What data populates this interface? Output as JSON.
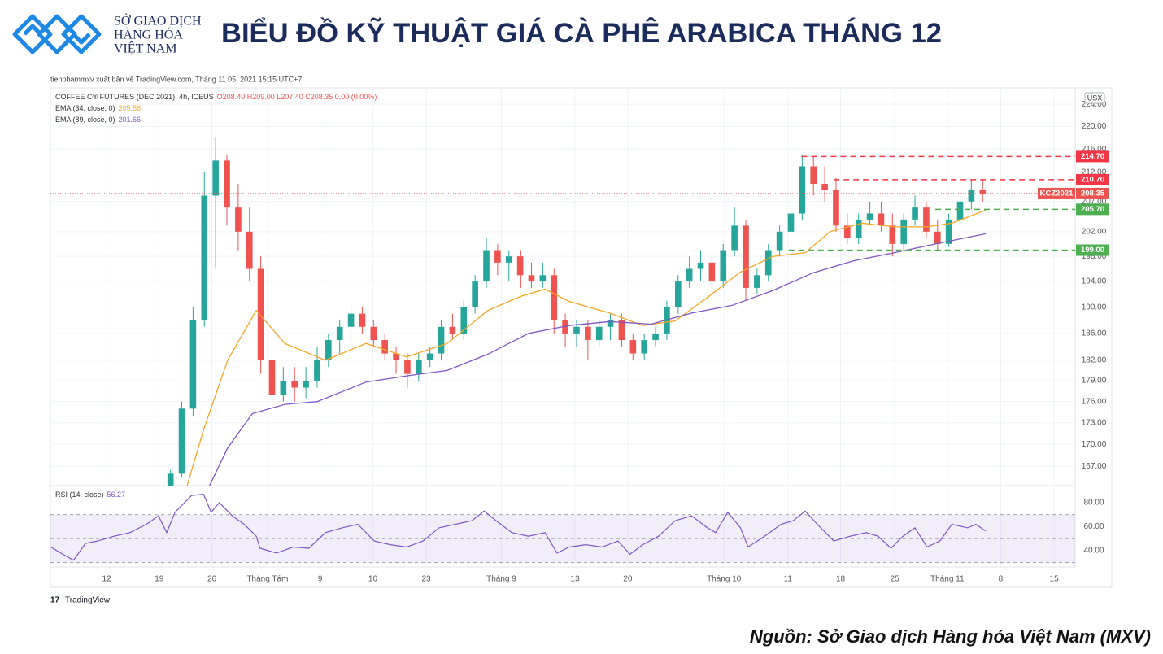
{
  "header": {
    "logo_lines": [
      "SỞ GIAO DỊCH",
      "HÀNG HÓA",
      "VIỆT NAM"
    ],
    "title": "BIỂU ĐỒ KỸ THUẬT GIÁ CÀ PHÊ ARABICA THÁNG 12"
  },
  "publisher": "tienphammxv xuất bản về TradingView.com, Tháng 11 05, 2021 15:15 UTC+7",
  "brand": "TradingView",
  "source": "Nguồn: Sở Giao dịch Hàng hóa Việt Nam (MXV)",
  "chart_data": {
    "type": "candlestick",
    "title": "COFFEE C® FUTURES (DEC 2021), 4h, ICEUS",
    "ohlc_text": "O208.40 H209.00 L207.40 C208.35 0.00 (0.00%)",
    "currency": "USX",
    "symbol": "KCZ2021",
    "log_y": true,
    "grid": true,
    "up_color": "#26a69a",
    "down_color": "#ef5350",
    "x": [
      15.5,
      17,
      18.5,
      20,
      21.5,
      23,
      24.5,
      26,
      27.5,
      29,
      30.5,
      32,
      33.5,
      35,
      36.5,
      38,
      39.5,
      41,
      42.5,
      44,
      45.5,
      47,
      48.5,
      50,
      51.5,
      53,
      54.5,
      56,
      57.5,
      59,
      60.5,
      62,
      63.5,
      65,
      66.5,
      68,
      69.5,
      71,
      72.5,
      74,
      75.5,
      77,
      78.5,
      80,
      81.5,
      83,
      84.5,
      86,
      87.5,
      89,
      90.5,
      92,
      93.5,
      95,
      96.5,
      98,
      99.5,
      101,
      102.5,
      104,
      105.5,
      107,
      108.5,
      110,
      111.5,
      113,
      114.5,
      116,
      117.5,
      119,
      120.5,
      122,
      123.5
    ],
    "open": [
      163.5,
      166,
      175,
      188,
      208,
      214,
      206,
      202,
      196,
      182,
      177,
      179,
      178,
      179,
      182,
      185,
      187,
      189,
      187,
      185,
      183,
      182,
      180,
      182,
      183,
      187,
      186,
      190,
      194,
      199,
      197,
      198,
      195,
      194,
      195,
      188,
      186,
      187,
      185,
      187,
      188,
      185,
      183,
      185,
      186,
      190,
      194,
      196,
      197,
      194,
      199,
      203,
      193,
      195,
      199,
      202,
      205,
      213,
      210,
      209,
      203,
      201,
      204,
      205,
      203,
      200,
      204,
      206,
      202,
      200,
      204,
      207,
      209
    ],
    "high": [
      166.5,
      176,
      190,
      212,
      218,
      215,
      210,
      206,
      198,
      183,
      181,
      181,
      181,
      184,
      186,
      188,
      190,
      190,
      188,
      186,
      184,
      183,
      183,
      184,
      188,
      189,
      191,
      195,
      201,
      200,
      199,
      199,
      197,
      197,
      196,
      189,
      188,
      188,
      188,
      189,
      189,
      186,
      186,
      187,
      191,
      195,
      198,
      199,
      198,
      200,
      206,
      204,
      196,
      200,
      203,
      206,
      215,
      214.7,
      213,
      211,
      205,
      205,
      207,
      207,
      205,
      205,
      208,
      207,
      204,
      205,
      208,
      210.7,
      210.7
    ],
    "low": [
      163,
      165.5,
      174,
      187,
      196,
      203,
      199,
      194,
      180,
      175,
      176,
      176,
      176.5,
      178,
      181,
      183,
      185,
      186,
      184,
      182,
      180,
      178,
      179,
      181,
      182,
      185,
      185,
      189,
      193,
      195,
      194,
      193,
      193,
      193,
      186,
      184,
      184,
      182,
      184,
      185,
      184,
      182,
      182,
      184,
      185,
      189,
      193,
      194,
      193,
      193,
      198,
      191,
      192,
      194,
      198,
      201,
      204,
      208,
      207,
      202,
      200,
      200,
      203,
      202,
      198,
      199,
      203,
      201,
      199,
      199.5,
      203,
      205.7,
      207
    ],
    "close": [
      166,
      175,
      188,
      208,
      214,
      206,
      202,
      196,
      182,
      177,
      179,
      178,
      179,
      182,
      185,
      187,
      189,
      187,
      185,
      183,
      182,
      180,
      182,
      183,
      187,
      186,
      190,
      194,
      199,
      197,
      198,
      195,
      194,
      195,
      188,
      186,
      187,
      185,
      187,
      188,
      185,
      183,
      185,
      186,
      190,
      194,
      196,
      197,
      194,
      199,
      203,
      193,
      195,
      199,
      202,
      205,
      213,
      210,
      209,
      203,
      201,
      204,
      205,
      203,
      200,
      204,
      206,
      202,
      200,
      204,
      207,
      209,
      208.35
    ],
    "xlim": [
      -0.47,
      135.8
    ],
    "xticks": [
      {
        "value": 7,
        "label": "12"
      },
      {
        "value": 14,
        "label": "19"
      },
      {
        "value": 21,
        "label": "26"
      },
      {
        "value": 28.4,
        "label": "Tháng Tám"
      },
      {
        "value": 35.4,
        "label": "9"
      },
      {
        "value": 42.4,
        "label": "16"
      },
      {
        "value": 49.5,
        "label": "23"
      },
      {
        "value": 59.5,
        "label": "Tháng 9"
      },
      {
        "value": 69.3,
        "label": "13"
      },
      {
        "value": 76.3,
        "label": "20"
      },
      {
        "value": 89.1,
        "label": "Tháng 10"
      },
      {
        "value": 97.6,
        "label": "11"
      },
      {
        "value": 104.6,
        "label": "18"
      },
      {
        "value": 111.8,
        "label": "25"
      },
      {
        "value": 118.8,
        "label": "Tháng 11"
      },
      {
        "value": 125.9,
        "label": "8"
      },
      {
        "value": 133,
        "label": "15"
      }
    ],
    "ylim": [
      164.4,
      227
    ],
    "yticks": [
      {
        "value": 224,
        "label": "224.00"
      },
      {
        "value": 220,
        "label": "220.00"
      },
      {
        "value": 216,
        "label": "216.00"
      },
      {
        "value": 212,
        "label": "212.00"
      },
      {
        "value": 207,
        "label": "207.00"
      },
      {
        "value": 202,
        "label": "202.00"
      },
      {
        "value": 198,
        "label": "198.00"
      },
      {
        "value": 194,
        "label": "194.00"
      },
      {
        "value": 190,
        "label": "190.00"
      },
      {
        "value": 186,
        "label": "186.00"
      },
      {
        "value": 182,
        "label": "182.00"
      },
      {
        "value": 179,
        "label": "179.00"
      },
      {
        "value": 176,
        "label": "176.00"
      },
      {
        "value": 173,
        "label": "173.00"
      },
      {
        "value": 170,
        "label": "170.00"
      },
      {
        "value": 167,
        "label": "167.00"
      }
    ],
    "series": [
      {
        "name": "EMA (34, close, 0)",
        "color": "#f5a623",
        "x": [
          17.3,
          19.9,
          23.1,
          26.9,
          30.7,
          36.1,
          41.5,
          46.9,
          52.3,
          57.7,
          62.1,
          65.3,
          68.5,
          73.9,
          78.3,
          82.6,
          86.9,
          91.3,
          95.6,
          99.9,
          103.2,
          107.5,
          111.8,
          116.1,
          119.4,
          123.9
        ],
        "values": [
          163,
          172,
          182,
          189.5,
          184.5,
          182,
          184.5,
          182.5,
          184.5,
          189.5,
          191.7,
          192.8,
          190.9,
          189.1,
          187.2,
          187.9,
          191.5,
          195.5,
          198,
          198.6,
          202,
          203.4,
          202.8,
          202.8,
          203.4,
          205.56
        ]
      },
      {
        "name": "EMA (89, close, 0)",
        "color": "#7e57c2",
        "x": [
          20.7,
          23.1,
          26.4,
          30.7,
          35.0,
          41.5,
          46.9,
          52.3,
          57.7,
          63.1,
          68.5,
          73.9,
          79.4,
          84.8,
          90.2,
          95.6,
          101.0,
          106.4,
          111.8,
          117.2,
          123.9
        ],
        "values": [
          164.4,
          169.5,
          174.3,
          175.6,
          176.0,
          178.8,
          179.7,
          180.5,
          182.9,
          186.0,
          187.2,
          187.8,
          187.4,
          189.1,
          190.3,
          192.6,
          195.4,
          197.3,
          198.6,
          200.0,
          201.66
        ]
      }
    ],
    "levels": [
      {
        "value": 214.7,
        "label": "214.70",
        "color": "#f23645",
        "start_x": 99.4
      },
      {
        "value": 210.7,
        "label": "210.70",
        "color": "#f23645",
        "start_x": 103.7
      },
      {
        "value": 205.7,
        "label": "205.70",
        "color": "#4caf50",
        "start_x": 117.2
      },
      {
        "value": 199,
        "label": "199.00",
        "color": "#4caf50",
        "start_x": 97.7
      }
    ],
    "rsi": {
      "type": "line",
      "name": "RSI (14, close)",
      "color": "#7e57c2",
      "x": [
        -0.4,
        0.9,
        2.6,
        4.2,
        5.8,
        8.0,
        10.1,
        12.3,
        13.9,
        15.0,
        16.1,
        17.2,
        18.3,
        19.9,
        20.9,
        22.0,
        23.7,
        25.3,
        26.9,
        27.4,
        29.6,
        31.8,
        33.9,
        36.1,
        38.3,
        40.4,
        42.6,
        44.7,
        46.9,
        49.1,
        51.2,
        53.4,
        55.6,
        57.2,
        58.8,
        60.9,
        63.1,
        65.3,
        66.9,
        68.5,
        70.7,
        72.9,
        75.0,
        76.6,
        78.3,
        80.4,
        82.6,
        84.8,
        86.9,
        88.0,
        89.6,
        91.3,
        92.3,
        94.5,
        96.7,
        98.3,
        99.9,
        101.5,
        103.7,
        105.9,
        108.0,
        109.6,
        111.3,
        112.9,
        114.5,
        116.1,
        117.8,
        119.4,
        121.5,
        122.6,
        123.9
      ],
      "values": [
        43,
        38,
        32,
        46,
        48,
        52,
        55,
        62,
        69,
        55,
        72,
        79,
        86,
        87,
        72,
        80,
        69,
        62,
        52,
        42,
        38,
        43,
        42,
        55,
        59,
        62,
        48,
        45,
        43,
        48,
        59,
        62,
        65,
        73,
        65,
        55,
        52,
        55,
        38,
        43,
        45,
        43,
        48,
        37,
        45,
        52,
        65,
        69,
        59,
        55,
        72,
        59,
        43,
        52,
        62,
        65,
        73,
        62,
        48,
        52,
        55,
        52,
        42,
        52,
        59,
        43,
        48,
        62,
        59,
        62,
        56.27
      ],
      "ylim": [
        26.4,
        94.2
      ],
      "yticks": [
        {
          "value": 80,
          "label": "80.00"
        },
        {
          "value": 60,
          "label": "60.00"
        },
        {
          "value": 40,
          "label": "40.00"
        }
      ],
      "bands": [
        70,
        50,
        30
      ]
    }
  }
}
